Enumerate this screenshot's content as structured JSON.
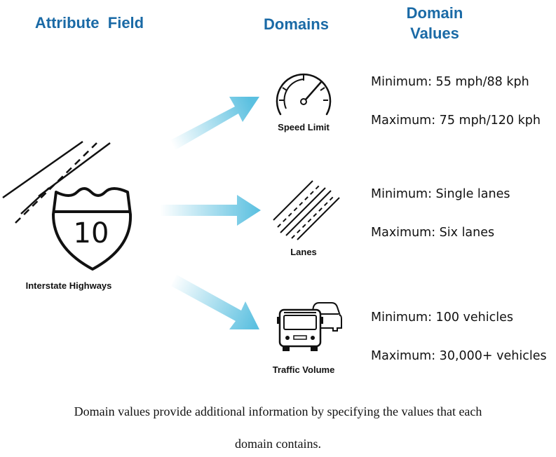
{
  "headers": {
    "attribute_field": "Attribute  Field",
    "domains": "Domains",
    "domain_values_line1": "Domain",
    "domain_values_line2": "Values"
  },
  "attribute": {
    "label": "Interstate Highways",
    "shield_number": "10"
  },
  "domains": [
    {
      "label": "Speed Limit",
      "icon": "speedometer-icon",
      "min": "Minimum: 55 mph/88 kph",
      "max": "Maximum: 75 mph/120 kph"
    },
    {
      "label": "Lanes",
      "icon": "lanes-icon",
      "min": "Minimum: Single lanes",
      "max": "Maximum: Six lanes"
    },
    {
      "label": "Traffic Volume",
      "icon": "vehicles-icon",
      "min": "Minimum: 100 vehicles",
      "max": "Maximum: 30,000+ vehicles"
    }
  ],
  "caption_line1": "Domain values provide additional information by specifying the values that each",
  "caption_line2": "domain contains.",
  "colors": {
    "header": "#1a6aa6",
    "arrow": "#5bc0e0"
  }
}
